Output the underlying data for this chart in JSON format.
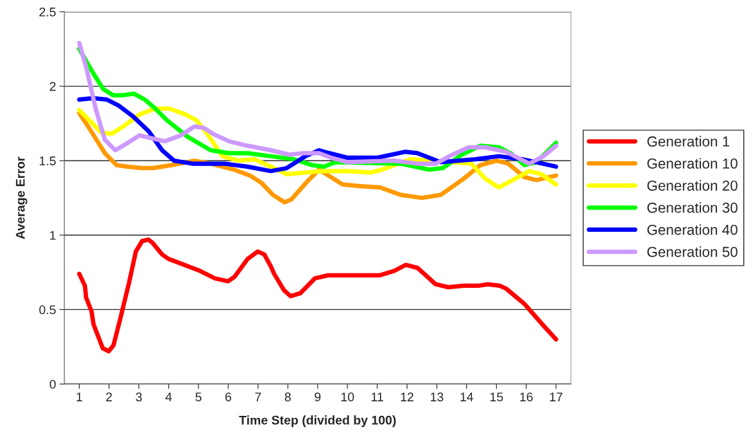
{
  "chart_data": {
    "type": "line",
    "xlabel": "Time Step (divided by 100)",
    "ylabel": "Average Error",
    "xlim": [
      0.5,
      17.5
    ],
    "xticks": [
      1,
      2,
      3,
      4,
      5,
      6,
      7,
      8,
      9,
      10,
      11,
      12,
      13,
      14,
      15,
      16,
      17
    ],
    "ylim": [
      0,
      2.5
    ],
    "yticks": [
      0,
      0.5,
      1,
      1.5,
      2,
      2.5
    ],
    "grid": "y",
    "legend": "right",
    "marker": "none",
    "line_style": "solid",
    "series": [
      {
        "name": "Generation 1",
        "color": "#ff0000",
        "x": [
          1.0,
          1.19,
          1.23,
          1.41,
          1.48,
          1.79,
          1.99,
          2.15,
          2.39,
          2.67,
          2.9,
          3.11,
          3.32,
          3.45,
          3.78,
          4.0,
          5.05,
          5.55,
          5.99,
          6.21,
          6.65,
          6.99,
          7.21,
          7.43,
          7.54,
          7.87,
          8.09,
          8.42,
          8.91,
          9.35,
          11.07,
          11.57,
          11.96,
          12.35,
          12.63,
          12.96,
          13.39,
          13.89,
          14.39,
          14.71,
          15.11,
          15.33,
          15.93,
          16.59,
          17.0
        ],
        "values": [
          0.74,
          0.66,
          0.58,
          0.49,
          0.4,
          0.24,
          0.22,
          0.26,
          0.45,
          0.68,
          0.89,
          0.96,
          0.97,
          0.95,
          0.87,
          0.84,
          0.76,
          0.71,
          0.69,
          0.72,
          0.84,
          0.89,
          0.87,
          0.79,
          0.74,
          0.63,
          0.59,
          0.61,
          0.71,
          0.73,
          0.73,
          0.76,
          0.8,
          0.78,
          0.73,
          0.67,
          0.65,
          0.66,
          0.66,
          0.67,
          0.66,
          0.64,
          0.54,
          0.39,
          0.3
        ]
      },
      {
        "name": "Generation 10",
        "color": "#ff9900",
        "x": [
          1.0,
          1.39,
          1.86,
          2.25,
          2.62,
          3.09,
          3.48,
          4.1,
          4.87,
          5.41,
          6.19,
          6.73,
          7.12,
          7.5,
          7.89,
          8.12,
          8.65,
          9.05,
          9.84,
          10.39,
          11.1,
          11.79,
          12.5,
          13.13,
          13.91,
          14.46,
          15.01,
          15.4,
          15.94,
          16.34,
          17.0
        ],
        "values": [
          1.82,
          1.7,
          1.55,
          1.47,
          1.46,
          1.45,
          1.45,
          1.47,
          1.5,
          1.48,
          1.44,
          1.4,
          1.35,
          1.27,
          1.22,
          1.24,
          1.36,
          1.44,
          1.34,
          1.33,
          1.32,
          1.27,
          1.25,
          1.27,
          1.38,
          1.47,
          1.5,
          1.48,
          1.39,
          1.37,
          1.4
        ]
      },
      {
        "name": "Generation 20",
        "color": "#ffff00",
        "x": [
          1.0,
          1.39,
          1.74,
          2.09,
          2.48,
          3.02,
          3.55,
          4.02,
          4.57,
          4.94,
          5.33,
          5.8,
          6.34,
          6.89,
          7.43,
          7.96,
          8.59,
          9.12,
          9.99,
          10.78,
          11.16,
          12.12,
          12.74,
          14.16,
          14.62,
          15.08,
          15.64,
          16.1,
          16.5,
          17.0
        ],
        "values": [
          1.84,
          1.76,
          1.69,
          1.68,
          1.73,
          1.81,
          1.85,
          1.85,
          1.81,
          1.77,
          1.67,
          1.53,
          1.5,
          1.51,
          1.46,
          1.41,
          1.42,
          1.43,
          1.43,
          1.42,
          1.44,
          1.51,
          1.5,
          1.48,
          1.38,
          1.32,
          1.38,
          1.43,
          1.41,
          1.34
        ]
      },
      {
        "name": "Generation 30",
        "color": "#00ff00",
        "x": [
          1.0,
          1.46,
          1.81,
          2.13,
          2.48,
          2.83,
          3.2,
          3.55,
          3.95,
          4.64,
          5.41,
          6.03,
          6.65,
          7.43,
          8.19,
          8.82,
          9.21,
          9.6,
          9.99,
          11.79,
          12.74,
          13.2,
          13.83,
          14.46,
          15.08,
          15.48,
          15.94,
          16.34,
          17.0
        ],
        "values": [
          2.25,
          2.09,
          1.98,
          1.94,
          1.94,
          1.95,
          1.91,
          1.85,
          1.77,
          1.66,
          1.57,
          1.55,
          1.55,
          1.53,
          1.51,
          1.47,
          1.46,
          1.49,
          null,
          1.48,
          1.44,
          1.45,
          1.54,
          1.6,
          1.59,
          1.55,
          1.47,
          1.49,
          1.62
        ]
      },
      {
        "name": "Generation 40",
        "color": "#0000ff",
        "x": [
          1.0,
          1.46,
          1.93,
          2.32,
          2.79,
          3.32,
          3.78,
          4.18,
          4.8,
          5.87,
          6.65,
          7.43,
          7.96,
          8.59,
          9.05,
          9.21,
          9.99,
          11.01,
          11.95,
          12.35,
          13.13,
          14.3,
          15.08,
          15.87,
          17.0
        ],
        "values": [
          1.91,
          1.92,
          1.91,
          1.87,
          1.8,
          1.7,
          1.57,
          1.5,
          1.48,
          1.48,
          1.46,
          1.43,
          1.45,
          1.53,
          1.57,
          1.56,
          1.52,
          1.52,
          1.56,
          1.55,
          1.49,
          1.51,
          1.53,
          1.51,
          1.46
        ]
      },
      {
        "name": "Generation 50",
        "color": "#cc99ff",
        "x": [
          1.0,
          1.23,
          1.55,
          1.86,
          2.21,
          2.55,
          3.02,
          3.87,
          4.41,
          4.87,
          5.18,
          5.49,
          6.03,
          6.65,
          7.43,
          8.05,
          8.51,
          9.05,
          9.45,
          9.99,
          11.56,
          12.35,
          12.97,
          13.52,
          14.07,
          14.62,
          15.32,
          16.1,
          16.58,
          17.0
        ],
        "values": [
          2.29,
          2.13,
          1.85,
          1.64,
          1.57,
          1.61,
          1.67,
          1.63,
          1.67,
          1.73,
          1.72,
          1.68,
          1.63,
          1.6,
          1.57,
          1.54,
          1.55,
          1.55,
          1.52,
          1.49,
          1.5,
          1.48,
          1.48,
          1.54,
          1.59,
          1.59,
          1.56,
          1.48,
          1.53,
          1.6
        ]
      }
    ]
  }
}
